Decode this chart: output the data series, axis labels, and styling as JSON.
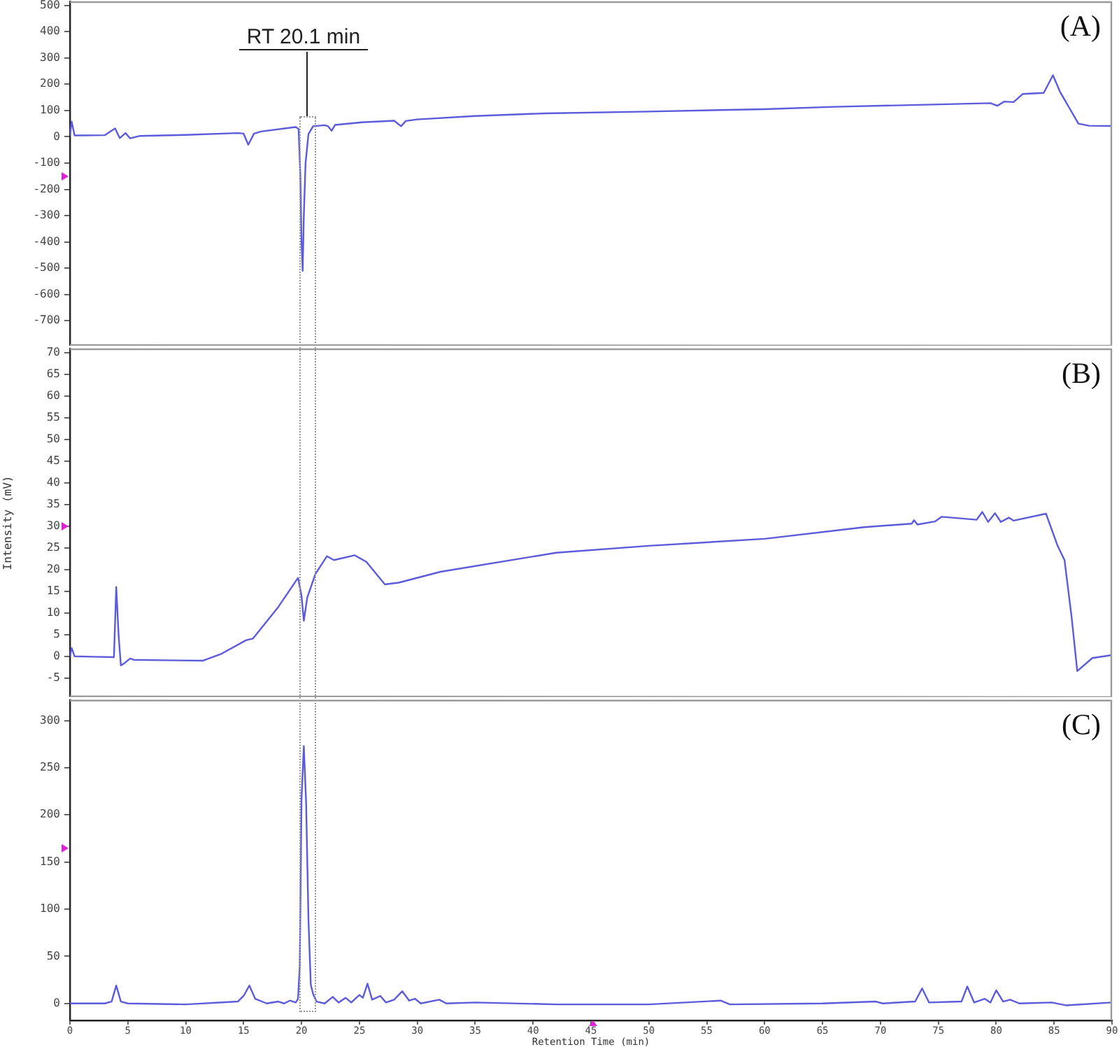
{
  "chart_data": [
    {
      "type": "line",
      "title": "(A)",
      "color": "#5b5bdc",
      "xlim": [
        0,
        90
      ],
      "ylim": [
        -795,
        515
      ],
      "yticks": [
        -700,
        -600,
        -500,
        -400,
        -300,
        -200,
        -100,
        0,
        100,
        200,
        300,
        400,
        500
      ],
      "tick_labels": "y",
      "x": [
        0,
        0.15,
        0.4,
        1,
        3,
        3.9,
        4.3,
        4.8,
        5.2,
        6,
        10,
        14.5,
        15.0,
        15.4,
        15.9,
        16.5,
        19.5,
        19.75,
        19.9,
        20.0,
        20.1,
        20.2,
        20.35,
        20.6,
        21.0,
        22.0,
        22.3,
        22.6,
        22.9,
        25.2,
        28.0,
        28.6,
        29.0,
        30,
        35,
        41,
        50,
        60,
        66,
        72,
        79.5,
        80.1,
        80.7,
        81.5,
        82.3,
        84.1,
        84.9,
        85.5,
        86.3,
        87.1,
        88,
        90
      ],
      "values": [
        5,
        58,
        5,
        5,
        6,
        32,
        -5,
        14,
        -6,
        3,
        7,
        14,
        12,
        -30,
        12,
        20,
        37,
        30,
        -150,
        -400,
        -510,
        -300,
        -100,
        10,
        40,
        44,
        40,
        23,
        45,
        55,
        61,
        40,
        60,
        66,
        79,
        89,
        96,
        105,
        114,
        120,
        128,
        118,
        134,
        132,
        163,
        167,
        234,
        172,
        111,
        50,
        42,
        41
      ],
      "annotations": [
        "RT 20.1 min"
      ]
    },
    {
      "type": "line",
      "title": "(B)",
      "ylabel": "Intensity (mV)",
      "color": "#5b5bdc",
      "xlim": [
        0,
        90
      ],
      "ylim": [
        -9.4,
        71
      ],
      "yticks": [
        -5,
        0,
        5,
        10,
        15,
        20,
        25,
        30,
        35,
        40,
        45,
        50,
        55,
        60,
        65,
        70
      ],
      "tick_labels": "y",
      "x": [
        0,
        0.15,
        0.4,
        2,
        3.8,
        4.0,
        4.2,
        4.4,
        4.7,
        5.2,
        5.5,
        8,
        11.5,
        13.1,
        15.2,
        15.8,
        18.0,
        19.7,
        20.0,
        20.2,
        20.5,
        21.2,
        22.2,
        22.8,
        24.6,
        25.6,
        27.2,
        28.4,
        32,
        42,
        50,
        60,
        68.6,
        72.7,
        72.9,
        73.2,
        74.7,
        75.3,
        78.3,
        78.8,
        79.3,
        79.9,
        80.4,
        81.1,
        81.5,
        84.3,
        85.3,
        85.9,
        86.5,
        87.0,
        88.3,
        90
      ],
      "values": [
        0,
        1.9,
        0,
        -0.1,
        -0.2,
        16,
        5,
        -2.1,
        -1.6,
        -0.5,
        -0.8,
        -0.9,
        -1.0,
        0.6,
        3.7,
        4.1,
        11.4,
        18.1,
        14,
        8.2,
        13.6,
        19,
        23.1,
        22.2,
        23.3,
        21.8,
        16.6,
        17,
        19.5,
        23.9,
        25.5,
        27.1,
        29.8,
        30.6,
        31.4,
        30.4,
        31.1,
        32.2,
        31.5,
        33.3,
        31.0,
        33.0,
        31.0,
        32.0,
        31.3,
        32.9,
        25.5,
        22.2,
        9.3,
        -3.4,
        -0.4,
        0.3
      ]
    },
    {
      "type": "line",
      "title": "(C)",
      "xlabel": "Retention Time (min)",
      "color": "#5b5bdc",
      "xlim": [
        0,
        90
      ],
      "ylim": [
        -18,
        322
      ],
      "xticks": [
        0,
        5,
        10,
        15,
        20,
        25,
        30,
        35,
        40,
        45,
        50,
        55,
        60,
        65,
        70,
        75,
        80,
        85,
        90
      ],
      "yticks": [
        0,
        50,
        100,
        150,
        200,
        250,
        300
      ],
      "x": [
        0,
        3,
        3.6,
        4.0,
        4.4,
        5,
        10,
        14.5,
        15.0,
        15.5,
        16.0,
        17,
        18,
        18.5,
        19,
        19.5,
        19.7,
        19.85,
        20.0,
        20.2,
        20.4,
        20.6,
        20.8,
        21.0,
        21.3,
        22,
        22.7,
        23.2,
        23.8,
        24.3,
        25.0,
        25.3,
        25.7,
        26.1,
        26.8,
        27.3,
        28.0,
        28.7,
        29.3,
        29.8,
        30.3,
        31.9,
        32.5,
        35,
        42,
        50,
        56.2,
        57,
        65,
        69.6,
        70.2,
        73.0,
        73.6,
        74.2,
        77.0,
        77.5,
        78.1,
        79.0,
        79.5,
        80.0,
        80.6,
        81.2,
        82,
        84.8,
        86,
        90
      ],
      "values": [
        0,
        0,
        2,
        19,
        2,
        0,
        -1,
        2,
        8,
        19,
        5,
        0,
        2,
        0,
        3,
        1,
        5,
        40,
        217,
        273,
        212,
        89,
        20,
        10,
        2,
        0,
        7,
        1,
        6,
        1,
        9,
        6,
        21,
        4,
        8,
        1,
        4,
        13,
        3,
        5,
        0,
        4,
        0,
        1,
        -1,
        -1,
        3,
        -1,
        0,
        2,
        0,
        2,
        16,
        1,
        2,
        18,
        1,
        5,
        1,
        14,
        2,
        4,
        0,
        1,
        -2,
        1
      ]
    }
  ]
}
